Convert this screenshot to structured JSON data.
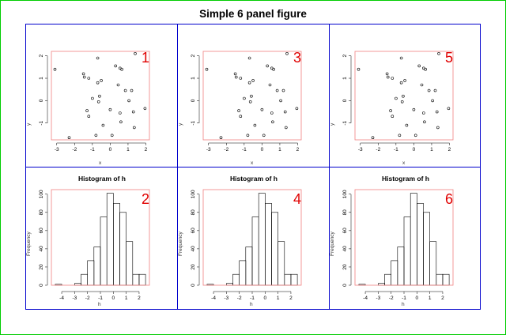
{
  "figure": {
    "title": "Simple 6 panel figure"
  },
  "chart_data": [
    {
      "panel": "1",
      "type": "scatter",
      "xlabel": "x",
      "ylabel": "y",
      "xlim": [
        -3.3,
        2.2
      ],
      "ylim": [
        -1.75,
        2.2
      ],
      "xticks": [
        -3,
        -2,
        -1,
        0,
        1,
        2
      ],
      "yticks": [
        -1,
        0,
        1,
        2
      ],
      "grid": false,
      "points": [
        [
          -3.1,
          1.4
        ],
        [
          -2.3,
          -1.65
        ],
        [
          -1.5,
          1.2
        ],
        [
          -1.45,
          1.05
        ],
        [
          -1.2,
          1.0
        ],
        [
          -1.0,
          0.1
        ],
        [
          -1.3,
          -0.45
        ],
        [
          -1.2,
          -0.7
        ],
        [
          -0.8,
          -1.55
        ],
        [
          -0.7,
          1.9
        ],
        [
          -0.7,
          0.8
        ],
        [
          -0.6,
          0.2
        ],
        [
          -0.65,
          -0.05
        ],
        [
          -0.5,
          0.9
        ],
        [
          -0.4,
          -1.1
        ],
        [
          0.0,
          -0.4
        ],
        [
          0.1,
          -1.55
        ],
        [
          0.3,
          1.55
        ],
        [
          0.45,
          0.7
        ],
        [
          0.55,
          -0.55
        ],
        [
          0.6,
          -0.95
        ],
        [
          0.55,
          1.45
        ],
        [
          0.65,
          1.4
        ],
        [
          0.85,
          0.45
        ],
        [
          1.05,
          0.0
        ],
        [
          1.2,
          0.45
        ],
        [
          1.3,
          -0.5
        ],
        [
          1.35,
          -1.2
        ],
        [
          1.4,
          2.1
        ],
        [
          1.95,
          -0.35
        ]
      ]
    },
    {
      "panel": "3",
      "type": "scatter",
      "xlabel": "x",
      "ylabel": "y",
      "xlim": [
        -3.3,
        2.2
      ],
      "ylim": [
        -1.75,
        2.2
      ],
      "xticks": [
        -3,
        -2,
        -1,
        0,
        1,
        2
      ],
      "yticks": [
        -1,
        0,
        1,
        2
      ],
      "grid": false,
      "points": [
        [
          -3.1,
          1.4
        ],
        [
          -2.3,
          -1.65
        ],
        [
          -1.5,
          1.2
        ],
        [
          -1.45,
          1.05
        ],
        [
          -1.2,
          1.0
        ],
        [
          -1.0,
          0.1
        ],
        [
          -1.3,
          -0.45
        ],
        [
          -1.2,
          -0.7
        ],
        [
          -0.8,
          -1.55
        ],
        [
          -0.7,
          1.9
        ],
        [
          -0.7,
          0.8
        ],
        [
          -0.6,
          0.2
        ],
        [
          -0.65,
          -0.05
        ],
        [
          -0.5,
          0.9
        ],
        [
          -0.4,
          -1.1
        ],
        [
          0.0,
          -0.4
        ],
        [
          0.1,
          -1.55
        ],
        [
          0.3,
          1.55
        ],
        [
          0.45,
          0.7
        ],
        [
          0.55,
          -0.55
        ],
        [
          0.6,
          -0.95
        ],
        [
          0.55,
          1.45
        ],
        [
          0.65,
          1.4
        ],
        [
          0.85,
          0.45
        ],
        [
          1.05,
          0.0
        ],
        [
          1.2,
          0.45
        ],
        [
          1.3,
          -0.5
        ],
        [
          1.35,
          -1.2
        ],
        [
          1.4,
          2.1
        ],
        [
          1.95,
          -0.35
        ]
      ]
    },
    {
      "panel": "5",
      "type": "scatter",
      "xlabel": "x",
      "ylabel": "y",
      "xlim": [
        -3.3,
        2.2
      ],
      "ylim": [
        -1.75,
        2.2
      ],
      "xticks": [
        -3,
        -2,
        -1,
        0,
        1,
        2
      ],
      "yticks": [
        -1,
        0,
        1,
        2
      ],
      "grid": false,
      "points": [
        [
          -3.1,
          1.4
        ],
        [
          -2.3,
          -1.65
        ],
        [
          -1.5,
          1.2
        ],
        [
          -1.45,
          1.05
        ],
        [
          -1.2,
          1.0
        ],
        [
          -1.0,
          0.1
        ],
        [
          -1.3,
          -0.45
        ],
        [
          -1.2,
          -0.7
        ],
        [
          -0.8,
          -1.55
        ],
        [
          -0.7,
          1.9
        ],
        [
          -0.7,
          0.8
        ],
        [
          -0.6,
          0.2
        ],
        [
          -0.65,
          -0.05
        ],
        [
          -0.5,
          0.9
        ],
        [
          -0.4,
          -1.1
        ],
        [
          0.0,
          -0.4
        ],
        [
          0.1,
          -1.55
        ],
        [
          0.3,
          1.55
        ],
        [
          0.45,
          0.7
        ],
        [
          0.55,
          -0.55
        ],
        [
          0.6,
          -0.95
        ],
        [
          0.55,
          1.45
        ],
        [
          0.65,
          1.4
        ],
        [
          0.85,
          0.45
        ],
        [
          1.05,
          0.0
        ],
        [
          1.2,
          0.45
        ],
        [
          1.3,
          -0.5
        ],
        [
          1.35,
          -1.2
        ],
        [
          1.4,
          2.1
        ],
        [
          1.95,
          -0.35
        ]
      ]
    },
    {
      "panel": "2",
      "type": "bar",
      "title": "Histogram of h",
      "xlabel": "h",
      "ylabel": "Frequency",
      "xlim": [
        -4.8,
        2.8
      ],
      "ylim": [
        0,
        105
      ],
      "xticks": [
        -4,
        -3,
        -2,
        -1,
        0,
        1,
        2
      ],
      "yticks": [
        0,
        20,
        40,
        60,
        80,
        100
      ],
      "grid": false,
      "bins": [
        [
          -4.5,
          -4.0,
          1
        ],
        [
          -4.0,
          -3.5,
          0
        ],
        [
          -3.5,
          -3.0,
          0
        ],
        [
          -3.0,
          -2.5,
          2
        ],
        [
          -2.5,
          -2.0,
          12
        ],
        [
          -2.0,
          -1.5,
          27
        ],
        [
          -1.5,
          -1.0,
          42
        ],
        [
          -1.0,
          -0.5,
          75
        ],
        [
          -0.5,
          0.0,
          101
        ],
        [
          0.0,
          0.5,
          90
        ],
        [
          0.5,
          1.0,
          80
        ],
        [
          1.0,
          1.5,
          48
        ],
        [
          1.5,
          2.0,
          12
        ],
        [
          2.0,
          2.5,
          12
        ]
      ]
    },
    {
      "panel": "4",
      "type": "bar",
      "title": "Histogram of h",
      "xlabel": "h",
      "ylabel": "Frequency",
      "xlim": [
        -4.8,
        2.8
      ],
      "ylim": [
        0,
        105
      ],
      "xticks": [
        -4,
        -3,
        -2,
        -1,
        0,
        1,
        2
      ],
      "yticks": [
        0,
        20,
        40,
        60,
        80,
        100
      ],
      "grid": false,
      "bins": [
        [
          -4.5,
          -4.0,
          1
        ],
        [
          -4.0,
          -3.5,
          0
        ],
        [
          -3.5,
          -3.0,
          0
        ],
        [
          -3.0,
          -2.5,
          2
        ],
        [
          -2.5,
          -2.0,
          12
        ],
        [
          -2.0,
          -1.5,
          27
        ],
        [
          -1.5,
          -1.0,
          42
        ],
        [
          -1.0,
          -0.5,
          75
        ],
        [
          -0.5,
          0.0,
          101
        ],
        [
          0.0,
          0.5,
          90
        ],
        [
          0.5,
          1.0,
          80
        ],
        [
          1.0,
          1.5,
          48
        ],
        [
          1.5,
          2.0,
          12
        ],
        [
          2.0,
          2.5,
          12
        ]
      ]
    },
    {
      "panel": "6",
      "type": "bar",
      "title": "Histogram of h",
      "xlabel": "h",
      "ylabel": "Frequency",
      "xlim": [
        -4.8,
        2.8
      ],
      "ylim": [
        0,
        105
      ],
      "xticks": [
        -4,
        -3,
        -2,
        -1,
        0,
        1,
        2
      ],
      "yticks": [
        0,
        20,
        40,
        60,
        80,
        100
      ],
      "grid": false,
      "bins": [
        [
          -4.5,
          -4.0,
          1
        ],
        [
          -4.0,
          -3.5,
          0
        ],
        [
          -3.5,
          -3.0,
          0
        ],
        [
          -3.0,
          -2.5,
          2
        ],
        [
          -2.5,
          -2.0,
          12
        ],
        [
          -2.0,
          -1.5,
          27
        ],
        [
          -1.5,
          -1.0,
          42
        ],
        [
          -1.0,
          -0.5,
          75
        ],
        [
          -0.5,
          0.0,
          101
        ],
        [
          0.0,
          0.5,
          90
        ],
        [
          0.5,
          1.0,
          80
        ],
        [
          1.0,
          1.5,
          48
        ],
        [
          1.5,
          2.0,
          12
        ],
        [
          2.0,
          2.5,
          12
        ]
      ]
    }
  ],
  "colors": {
    "panel_number": "#e00000",
    "plot_border": "#f08080",
    "grid_border": "#0000cc",
    "outer_border": "#00cc00"
  }
}
